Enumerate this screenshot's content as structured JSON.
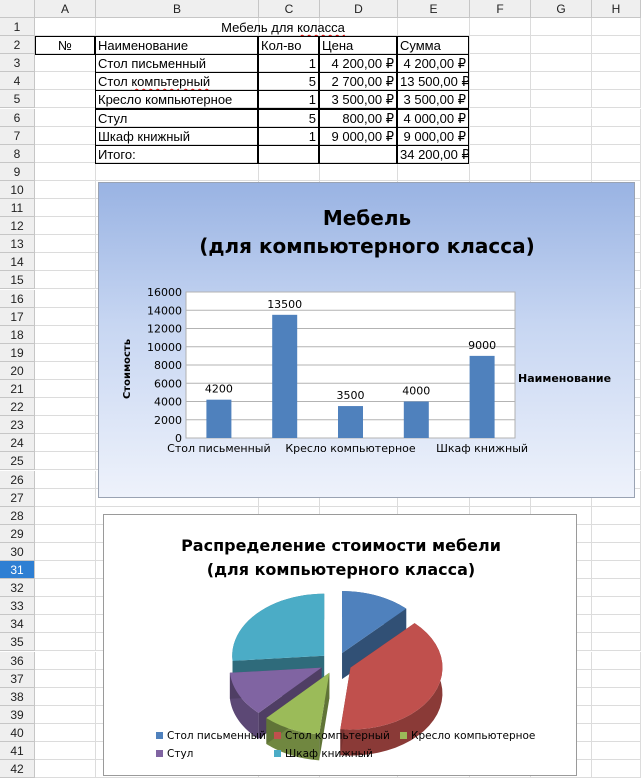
{
  "columns": [
    "A",
    "B",
    "C",
    "D",
    "E",
    "F",
    "G",
    "H"
  ],
  "rows": [
    "1",
    "2",
    "3",
    "4",
    "5",
    "6",
    "7",
    "8",
    "9",
    "10",
    "11",
    "12",
    "13",
    "14",
    "15",
    "16",
    "17",
    "18",
    "19",
    "20",
    "21",
    "22",
    "23",
    "24",
    "25",
    "26",
    "27",
    "28",
    "29",
    "30",
    "31",
    "32",
    "33",
    "34",
    "35",
    "36",
    "37",
    "38",
    "39",
    "40",
    "41",
    "42"
  ],
  "active_row": "31",
  "table": {
    "title_prefix": "Мебель для ",
    "title_misspelled": "коласса",
    "headers": {
      "num": "№",
      "name": "Наименование",
      "qty": "Кол-во",
      "price": "Цена",
      "sum": "Сумма"
    },
    "items": [
      {
        "name_prefix": "Стол письменный",
        "name_misspelled": "",
        "qty": "1",
        "price": "4 200,00 ₽",
        "sum": "4 200,00 ₽"
      },
      {
        "name_prefix": "Стол ",
        "name_misspelled": "компьтерный",
        "qty": "5",
        "price": "2 700,00 ₽",
        "sum": "13 500,00 ₽"
      },
      {
        "name_prefix": "Кресло компьютерное",
        "name_misspelled": "",
        "qty": "1",
        "price": "3 500,00 ₽",
        "sum": "3 500,00 ₽"
      },
      {
        "name_prefix": "Стул",
        "name_misspelled": "",
        "qty": "5",
        "price": "800,00 ₽",
        "sum": "4 000,00 ₽"
      },
      {
        "name_prefix": "Шкаф книжный",
        "name_misspelled": "",
        "qty": "1",
        "price": "9 000,00 ₽",
        "sum": "9 000,00 ₽"
      }
    ],
    "total_label": "Итого:",
    "total_value": "34 200,00 ₽"
  },
  "chart_data": [
    {
      "type": "bar",
      "title": "Мебель",
      "subtitle": "(для компьютерного класса)",
      "ylabel": "Стоимость",
      "legend_label": "Наименование",
      "categories": [
        "Стол письменный",
        "Стол компьтерный",
        "Кресло компьютерное",
        "Стул",
        "Шкаф книжный"
      ],
      "x_tick_labels_shown": [
        "Стол письменный",
        "Кресло компьютерное",
        "Шкаф книжный"
      ],
      "values": [
        4200,
        13500,
        3500,
        4000,
        9000
      ],
      "data_labels": [
        "4200",
        "13500",
        "3500",
        "4000",
        "9000"
      ],
      "ylim": [
        0,
        16000
      ],
      "yticks": [
        "0",
        "2000",
        "4000",
        "6000",
        "8000",
        "10000",
        "12000",
        "14000",
        "16000"
      ],
      "grid": true,
      "bar_color": "#4f81bd"
    },
    {
      "type": "pie",
      "title": "Распределение стоимости мебели",
      "subtitle": "(для компьютерного класса)",
      "categories": [
        "Стол письменный",
        "Стол компьтерный",
        "Кресло компьютерное",
        "Стул",
        "Шкаф книжный"
      ],
      "values": [
        4200,
        13500,
        3500,
        4000,
        9000
      ],
      "colors": [
        "#4f81bd",
        "#c0504d",
        "#9bbb59",
        "#8064a2",
        "#4bacc6"
      ],
      "legend_placement": "bottom",
      "style": "3d-exploded"
    }
  ]
}
